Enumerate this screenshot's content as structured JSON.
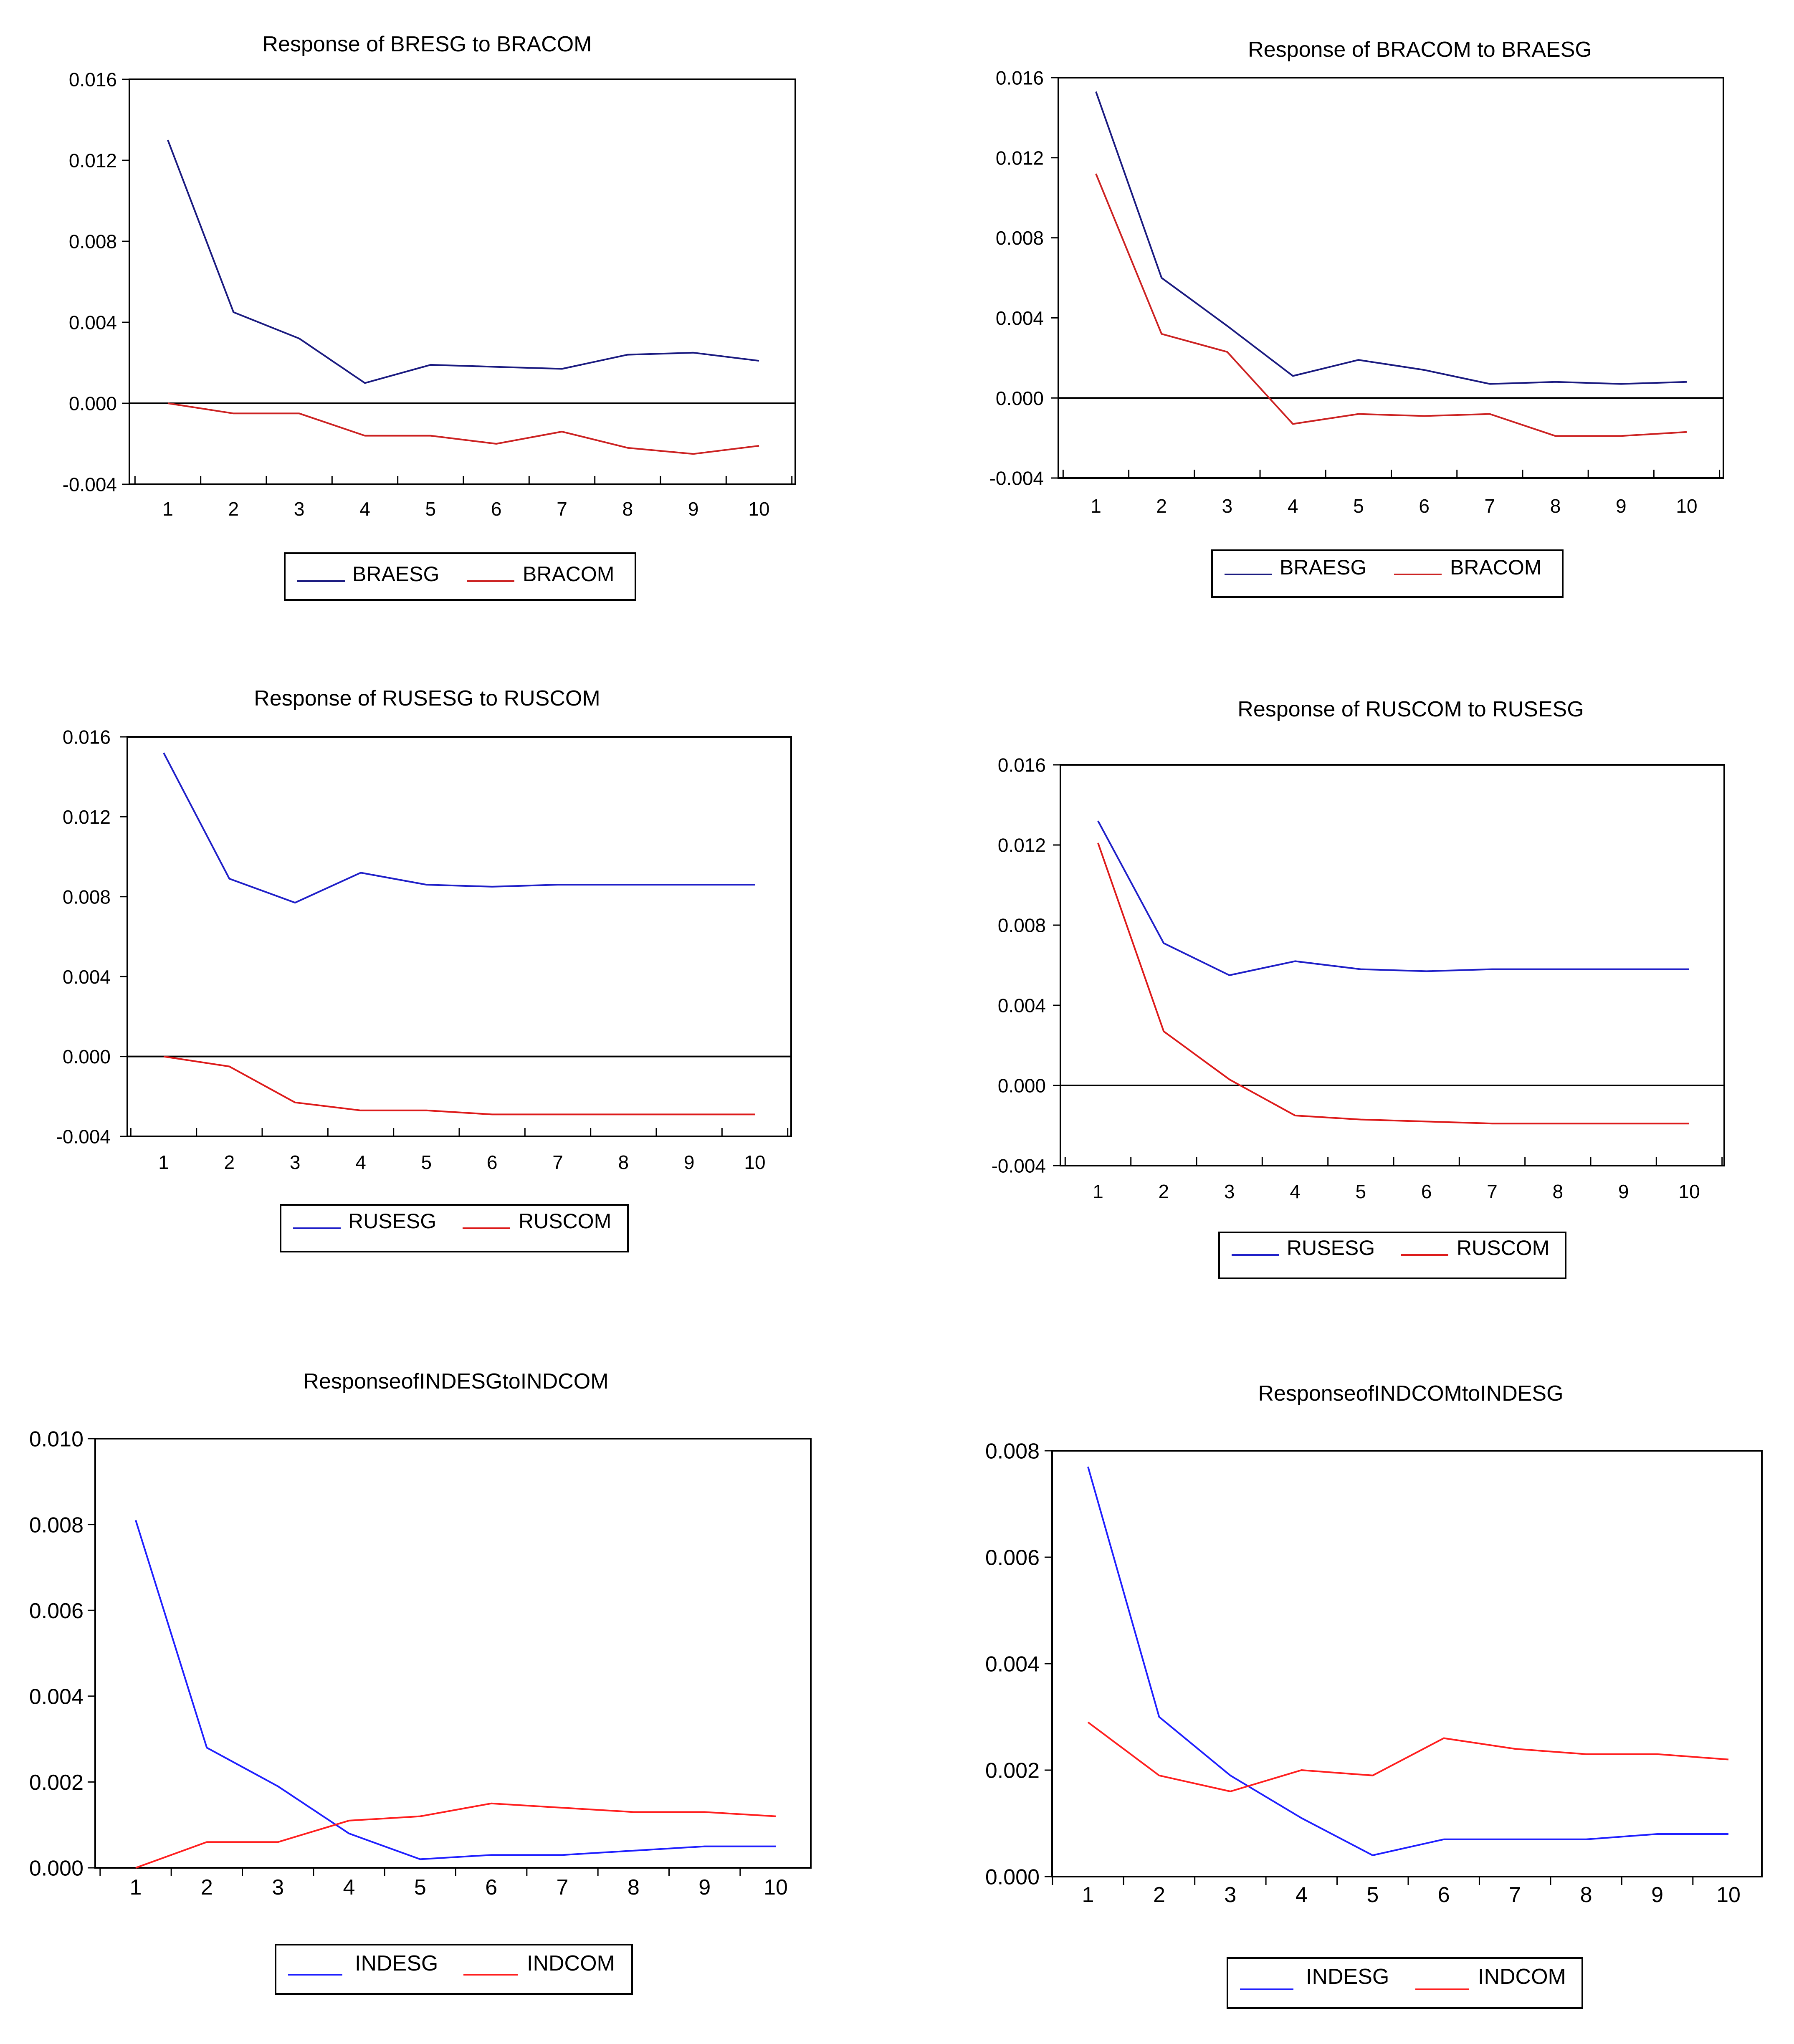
{
  "chart_data": [
    {
      "type": "line",
      "title": "Response of BRESG to BRACOM",
      "categories": [
        "1",
        "2",
        "3",
        "4",
        "5",
        "6",
        "7",
        "8",
        "9",
        "10"
      ],
      "ylim": [
        -0.004,
        0.016
      ],
      "yticks": [
        "-0.004",
        "0.000",
        "0.004",
        "0.008",
        "0.012",
        "0.016"
      ],
      "zero_line": true,
      "series": [
        {
          "name": "BRAESG",
          "color": "#1a1a80",
          "values": [
            0.013,
            0.0045,
            0.0032,
            0.001,
            0.0019,
            0.0018,
            0.0017,
            0.0024,
            0.0025,
            0.0021
          ]
        },
        {
          "name": "BRACOM",
          "color": "#cc2222",
          "values": [
            0.0,
            -0.0005,
            -0.0005,
            -0.0016,
            -0.0016,
            -0.002,
            -0.0014,
            -0.0022,
            -0.0025,
            -0.0021
          ]
        }
      ]
    },
    {
      "type": "line",
      "title": "Response of BRACOM to BRAESG",
      "categories": [
        "1",
        "2",
        "3",
        "4",
        "5",
        "6",
        "7",
        "8",
        "9",
        "10"
      ],
      "ylim": [
        -0.004,
        0.016
      ],
      "yticks": [
        "-0.004",
        "0.000",
        "0.004",
        "0.008",
        "0.012",
        "0.016"
      ],
      "zero_line": true,
      "series": [
        {
          "name": "BRAESG",
          "color": "#1a1a80",
          "values": [
            0.0153,
            0.006,
            0.0036,
            0.0011,
            0.0019,
            0.0014,
            0.0007,
            0.0008,
            0.0007,
            0.0008
          ]
        },
        {
          "name": "BRACOM",
          "color": "#cc2222",
          "values": [
            0.0112,
            0.0032,
            0.0023,
            -0.0013,
            -0.0008,
            -0.0009,
            -0.0008,
            -0.0019,
            -0.0019,
            -0.0017
          ]
        }
      ]
    },
    {
      "type": "line",
      "title": "Response of RUSESG to RUSCOM",
      "categories": [
        "1",
        "2",
        "3",
        "4",
        "5",
        "6",
        "7",
        "8",
        "9",
        "10"
      ],
      "ylim": [
        -0.004,
        0.016
      ],
      "yticks": [
        "-0.004",
        "0.000",
        "0.004",
        "0.008",
        "0.012",
        "0.016"
      ],
      "zero_line": true,
      "series": [
        {
          "name": "RUSESG",
          "color": "#1f1fc8",
          "values": [
            0.0152,
            0.0089,
            0.0077,
            0.0092,
            0.0086,
            0.0085,
            0.0086,
            0.0086,
            0.0086,
            0.0086
          ]
        },
        {
          "name": "RUSCOM",
          "color": "#dd1a1a",
          "values": [
            0.0,
            -0.0005,
            -0.0023,
            -0.0027,
            -0.0027,
            -0.0029,
            -0.0029,
            -0.0029,
            -0.0029,
            -0.0029
          ]
        }
      ]
    },
    {
      "type": "line",
      "title": "Response of RUSCOM to RUSESG",
      "categories": [
        "1",
        "2",
        "3",
        "4",
        "5",
        "6",
        "7",
        "8",
        "9",
        "10"
      ],
      "ylim": [
        -0.004,
        0.016
      ],
      "yticks": [
        "-0.004",
        "0.000",
        "0.004",
        "0.008",
        "0.012",
        "0.016"
      ],
      "zero_line": true,
      "series": [
        {
          "name": "RUSESG",
          "color": "#1f1fc8",
          "values": [
            0.0132,
            0.0071,
            0.0055,
            0.0062,
            0.0058,
            0.0057,
            0.0058,
            0.0058,
            0.0058,
            0.0058
          ]
        },
        {
          "name": "RUSCOM",
          "color": "#dd1a1a",
          "values": [
            0.0121,
            0.0027,
            0.0003,
            -0.0015,
            -0.0017,
            -0.0018,
            -0.0019,
            -0.0019,
            -0.0019,
            -0.0019
          ]
        }
      ]
    },
    {
      "type": "line",
      "title": "ResponseofINDESGtoINDCOM",
      "categories": [
        "1",
        "2",
        "3",
        "4",
        "5",
        "6",
        "7",
        "8",
        "9",
        "10"
      ],
      "ylim": [
        0.0,
        0.01
      ],
      "yticks": [
        "0.000",
        "0.002",
        "0.004",
        "0.006",
        "0.008",
        "0.010"
      ],
      "zero_line": false,
      "series": [
        {
          "name": "INDESG",
          "color": "#1f1fff",
          "values": [
            0.0081,
            0.0028,
            0.0019,
            0.0008,
            0.0002,
            0.0003,
            0.0003,
            0.0004,
            0.0005,
            0.0005
          ]
        },
        {
          "name": "INDCOM",
          "color": "#ff1f1f",
          "values": [
            0.0,
            0.0006,
            0.0006,
            0.0011,
            0.0012,
            0.0015,
            0.0014,
            0.0013,
            0.0013,
            0.0012
          ]
        }
      ]
    },
    {
      "type": "line",
      "title": "ResponseofINDCOMtoINDESG",
      "categories": [
        "1",
        "2",
        "3",
        "4",
        "5",
        "6",
        "7",
        "8",
        "9",
        "10"
      ],
      "ylim": [
        0.0,
        0.008
      ],
      "yticks": [
        "0.000",
        "0.002",
        "0.004",
        "0.006",
        "0.008"
      ],
      "zero_line": false,
      "series": [
        {
          "name": "INDESG",
          "color": "#1f1fff",
          "values": [
            0.0077,
            0.003,
            0.0019,
            0.0011,
            0.0004,
            0.0007,
            0.0007,
            0.0007,
            0.0008,
            0.0008
          ]
        },
        {
          "name": "INDCOM",
          "color": "#ff1f1f",
          "values": [
            0.0029,
            0.0019,
            0.0016,
            0.002,
            0.0019,
            0.0026,
            0.0024,
            0.0023,
            0.0023,
            0.0022
          ]
        }
      ]
    }
  ]
}
